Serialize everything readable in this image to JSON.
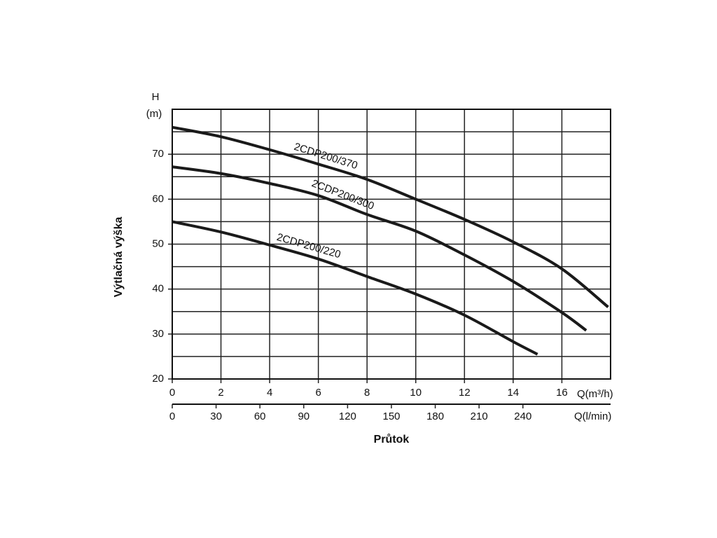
{
  "chart_data": {
    "type": "line",
    "y_label_top": "H",
    "y_unit": "(m)",
    "y_title": "Výtlačná výška",
    "x_title": "Průtok",
    "x_unit": "Q(m³/h)",
    "x2_unit": "Q(l/min)",
    "xlim": [
      0,
      18
    ],
    "xticks": [
      0,
      2,
      4,
      6,
      8,
      10,
      12,
      14,
      16
    ],
    "x2lim": [
      0,
      300
    ],
    "x2ticks": [
      0,
      30,
      60,
      90,
      120,
      150,
      180,
      210,
      240
    ],
    "ylim": [
      20,
      80
    ],
    "yticks": [
      20,
      30,
      40,
      50,
      60,
      70
    ],
    "grid": true,
    "series": [
      {
        "name": "2CDP200/370",
        "color": "#1a1a1a",
        "x": [
          0,
          2,
          4,
          6,
          8,
          10,
          12,
          14,
          16,
          17.9
        ],
        "values": [
          76,
          73.9,
          71,
          67.8,
          64.4,
          60,
          55.5,
          50.5,
          44.5,
          36
        ]
      },
      {
        "name": "2CDP200/300",
        "color": "#1a1a1a",
        "x": [
          0,
          2,
          4,
          6,
          8,
          10,
          12,
          14,
          16,
          17
        ],
        "values": [
          67.2,
          65.7,
          63.5,
          60.8,
          56.6,
          52.9,
          47.6,
          41.7,
          34.8,
          30.8
        ]
      },
      {
        "name": "2CDP200/220",
        "color": "#1a1a1a",
        "x": [
          0,
          2,
          4,
          6,
          8,
          10,
          12,
          14,
          15
        ],
        "values": [
          55,
          52.7,
          49.8,
          46.7,
          42.8,
          38.9,
          34.2,
          28.3,
          25.5
        ]
      }
    ]
  }
}
